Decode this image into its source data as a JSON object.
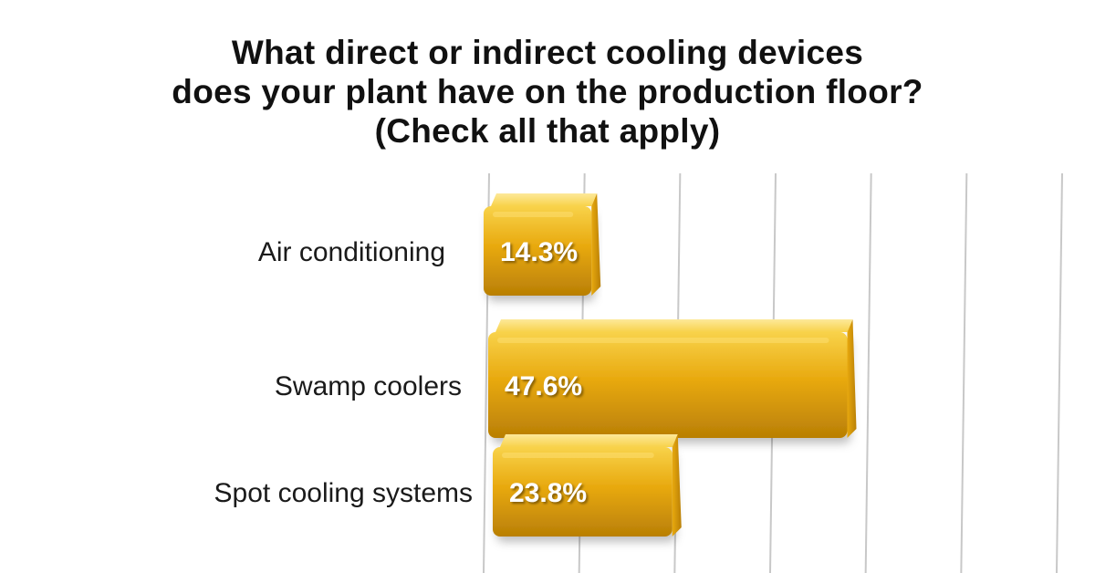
{
  "title_lines": [
    "What direct or indirect cooling devices",
    "does your plant have on the production floor?",
    "(Check all that apply)"
  ],
  "colors": {
    "bar_top": "#f8d24a",
    "bar_main": "#e8a90e",
    "bar_dark": "#b97f05",
    "grid": "#c8c8c8"
  },
  "chart_data": {
    "type": "bar",
    "orientation": "horizontal",
    "style": "3d",
    "title": "What direct or indirect cooling devices does your plant have on the production floor? (Check all that apply)",
    "categories": [
      "Air conditioning",
      "Swamp coolers",
      "Spot cooling systems",
      ""
    ],
    "values": [
      14.3,
      47.6,
      23.8,
      null
    ],
    "value_labels": [
      "14.3%",
      "47.6%",
      "23.8%",
      ""
    ],
    "xlim": [
      0,
      60
    ],
    "grid": true
  }
}
